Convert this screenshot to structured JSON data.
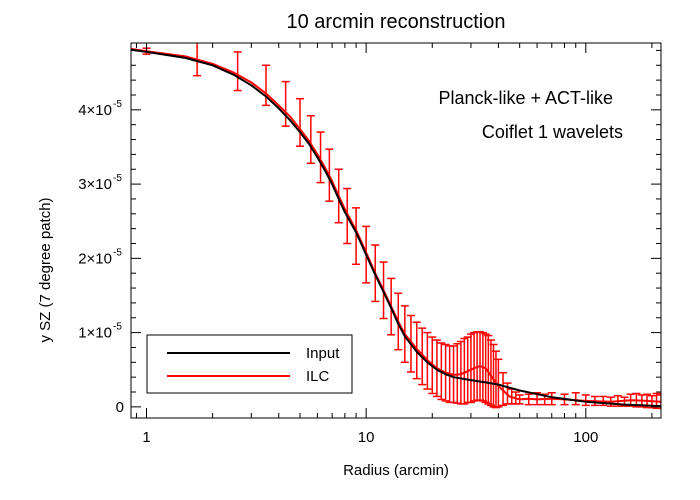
{
  "chart_data": {
    "type": "line",
    "title": "10 arcmin reconstruction",
    "xlabel": "Radius (arcmin)",
    "ylabel": "y SZ (7 degree patch)",
    "x_scale": "log",
    "xlim": [
      0.85,
      220
    ],
    "ylim": [
      -1.5e-06,
      4.9e-05
    ],
    "grid": false,
    "legend_position": "bottom-left",
    "x_ticks": [
      {
        "value": 1,
        "label": "1"
      },
      {
        "value": 10,
        "label": "10"
      },
      {
        "value": 100,
        "label": "100"
      }
    ],
    "y_ticks": [
      {
        "value": 0,
        "label": "0",
        "exp": ""
      },
      {
        "value": 1e-05,
        "label": "1×10",
        "exp": "-5"
      },
      {
        "value": 2e-05,
        "label": "2×10",
        "exp": "-5"
      },
      {
        "value": 3e-05,
        "label": "3×10",
        "exp": "-5"
      },
      {
        "value": 4e-05,
        "label": "4×10",
        "exp": "-5"
      }
    ],
    "annotations": [
      "Planck-like + ACT-like",
      "Coiflet 1 wavelets"
    ],
    "series": [
      {
        "name": "Input",
        "color": "#000000",
        "x": [
          0.85,
          1,
          1.5,
          2,
          2.5,
          3,
          3.5,
          4,
          4.5,
          5,
          5.5,
          6,
          6.5,
          7,
          7.5,
          8,
          9,
          10,
          11,
          12,
          13,
          14,
          15,
          17,
          19,
          21,
          23,
          25,
          30,
          35,
          40,
          50,
          70,
          100,
          150,
          220
        ],
        "y": [
          4.81e-05,
          4.78e-05,
          4.7e-05,
          4.6e-05,
          4.47e-05,
          4.33e-05,
          4.18e-05,
          4.02e-05,
          3.86e-05,
          3.7e-05,
          3.54e-05,
          3.36e-05,
          3.18e-05,
          3e-05,
          2.8e-05,
          2.62e-05,
          2.35e-05,
          2.05e-05,
          1.78e-05,
          1.55e-05,
          1.33e-05,
          1.12e-05,
          9.5e-06,
          7.4e-06,
          6e-06,
          5e-06,
          4.4e-06,
          4e-06,
          3.6e-06,
          3.3e-06,
          3e-06,
          2.2e-06,
          1.3e-06,
          7e-07,
          3e-07,
          1e-07
        ]
      },
      {
        "name": "ILC",
        "color": "#ff0000",
        "x": [
          0.85,
          1,
          1.5,
          2,
          2.5,
          3,
          3.5,
          4,
          4.5,
          5,
          5.5,
          6,
          6.5,
          7,
          7.5,
          8,
          9,
          10,
          11,
          12,
          13,
          14,
          15,
          17,
          19,
          21,
          23,
          25,
          27,
          29,
          31,
          33,
          35,
          37,
          40,
          45,
          50,
          55,
          60,
          70,
          80,
          100,
          130,
          160,
          190,
          220
        ],
        "y": [
          4.82e-05,
          4.79e-05,
          4.72e-05,
          4.62e-05,
          4.5e-05,
          4.37e-05,
          4.22e-05,
          4.06e-05,
          3.91e-05,
          3.74e-05,
          3.58e-05,
          3.4e-05,
          3.22e-05,
          3.04e-05,
          2.84e-05,
          2.66e-05,
          2.38e-05,
          2.08e-05,
          1.8e-05,
          1.57e-05,
          1.35e-05,
          1.15e-05,
          9.8e-06,
          7.8e-06,
          6.3e-06,
          5.2e-06,
          4.6e-06,
          4.3e-06,
          4.4e-06,
          4.8e-06,
          5.2e-06,
          5.5e-06,
          5.2e-06,
          4.2e-06,
          2.8e-06,
          1.4e-06,
          1e-06,
          1.1e-06,
          1e-06,
          1.1e-06,
          1e-06,
          8e-07,
          7e-07,
          9e-07,
          8e-07,
          7e-07
        ]
      }
    ],
    "errorbars": {
      "series": "ILC",
      "x": [
        1,
        1.7,
        2.6,
        3.5,
        4.3,
        5,
        5.6,
        6.2,
        6.8,
        7.5,
        8.2,
        9,
        10,
        11,
        12,
        13,
        14,
        15,
        16,
        17,
        18,
        19,
        20,
        21,
        22,
        23,
        24,
        25,
        26,
        27,
        28,
        29,
        30,
        31,
        32,
        33,
        34,
        35,
        36,
        37,
        38,
        39,
        40,
        42,
        44,
        46,
        48,
        50,
        55,
        60,
        65,
        70,
        80,
        90,
        100,
        110,
        120,
        130,
        140,
        150,
        160,
        170,
        180,
        190,
        200,
        210,
        220
      ],
      "y": [
        4.79e-05,
        4.7e-05,
        4.52e-05,
        4.33e-05,
        4.08e-05,
        3.83e-05,
        3.6e-05,
        3.36e-05,
        3.12e-05,
        2.84e-05,
        2.57e-05,
        2.3e-05,
        2.05e-05,
        1.8e-05,
        1.57e-05,
        1.35e-05,
        1.15e-05,
        9.8e-06,
        8.5e-06,
        7.6e-06,
        6.8e-06,
        6.2e-06,
        5.6e-06,
        5.2e-06,
        4.8e-06,
        4.6e-06,
        4.4e-06,
        4.4e-06,
        4.5e-06,
        4.6e-06,
        4.8e-06,
        5e-06,
        5.2e-06,
        5.4e-06,
        5.5e-06,
        5.5e-06,
        5.4e-06,
        5.2e-06,
        5e-06,
        4.6e-06,
        4.2e-06,
        3.7e-06,
        3.2e-06,
        2.4e-06,
        1.8e-06,
        1.4e-06,
        1.2e-06,
        1e-06,
        1e-06,
        1.1e-06,
        1e-06,
        1.1e-06,
        1e-06,
        1.1e-06,
        9e-07,
        8e-07,
        8e-07,
        7e-07,
        8e-07,
        7e-07,
        9e-07,
        9e-07,
        8e-07,
        8e-07,
        7e-07,
        8e-07,
        7e-07
      ],
      "err": [
        4e-07,
        2.4e-06,
        2.6e-06,
        2.7e-06,
        3e-06,
        3.2e-06,
        3.2e-06,
        3.4e-06,
        3.5e-06,
        3.6e-06,
        3.7e-06,
        3.8e-06,
        3.8e-06,
        3.8e-06,
        3.8e-06,
        3.8e-06,
        3.8e-06,
        3.8e-06,
        3.8e-06,
        3.8e-06,
        3.8e-06,
        3.8e-06,
        3.8e-06,
        3.8e-06,
        3.8e-06,
        3.8e-06,
        3.8e-06,
        3.8e-06,
        4e-06,
        4.2e-06,
        4.4e-06,
        4.4e-06,
        4.6e-06,
        4.6e-06,
        4.6e-06,
        4.6e-06,
        4.6e-06,
        4.6e-06,
        4.6e-06,
        4.4e-06,
        4.2e-06,
        3.8e-06,
        3.2e-06,
        2.2e-06,
        1.4e-06,
        1e-06,
        8e-07,
        6e-07,
        7e-07,
        8e-07,
        7e-07,
        8e-07,
        7e-07,
        8e-07,
        7e-07,
        6e-07,
        6e-07,
        6e-07,
        7e-07,
        6e-07,
        8e-07,
        9e-07,
        8e-07,
        9e-07,
        8e-07,
        1e-06,
        9e-07
      ]
    }
  }
}
